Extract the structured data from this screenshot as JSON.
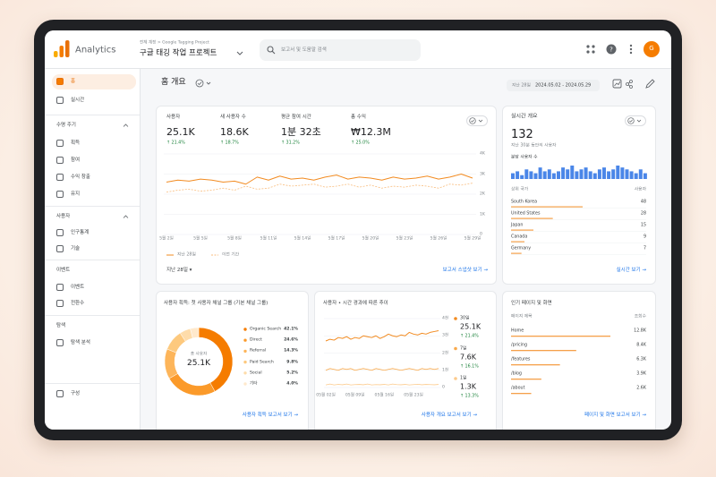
{
  "header": {
    "app_name": "Analytics",
    "breadcrumb": "전체 계정 > Google Tagging Project",
    "property": "구글 태깅 작업 프로젝트",
    "search_placeholder": "보고서 및 도움말 검색",
    "avatar": "G"
  },
  "sidebar": {
    "entries": [
      {
        "label": "홈",
        "kind": "item",
        "active": true
      },
      {
        "label": "실시간",
        "kind": "item"
      },
      {
        "label": "수명 주기",
        "kind": "section",
        "collapsible": true
      },
      {
        "label": "획득",
        "kind": "item"
      },
      {
        "label": "참여",
        "kind": "item"
      },
      {
        "label": "수익 창출",
        "kind": "item"
      },
      {
        "label": "유지",
        "kind": "item"
      },
      {
        "label": "사용자",
        "kind": "section",
        "collapsible": true
      },
      {
        "label": "인구통계",
        "kind": "item"
      },
      {
        "label": "기술",
        "kind": "item"
      },
      {
        "label": "이벤트",
        "kind": "section"
      },
      {
        "label": "이벤트",
        "kind": "item"
      },
      {
        "label": "전환수",
        "kind": "item"
      },
      {
        "label": "탐색",
        "kind": "section"
      },
      {
        "label": "탐색 분석",
        "kind": "item"
      },
      {
        "label": "구성",
        "kind": "item"
      }
    ]
  },
  "page": {
    "title": "홈 개요",
    "date_label": "지난 28일",
    "date_range": "2024.05.02 - 2024.05.29"
  },
  "overview": {
    "metrics": [
      {
        "label": "사용자",
        "value": "25.1K",
        "change": "↑ 21.4%"
      },
      {
        "label": "새 사용자 수",
        "value": "18.6K",
        "change": "↑ 18.7%"
      },
      {
        "label": "평균 참여 시간",
        "value": "1분 32초",
        "change": "↑ 31.2%"
      },
      {
        "label": "총 수익",
        "value": "₩12.3M",
        "change": "↑ 25.0%"
      }
    ],
    "chart": {
      "type": "line",
      "categories": [
        "5월 2일",
        null,
        null,
        "5월 5일",
        null,
        null,
        "5월 8일",
        null,
        null,
        "5월 11일",
        null,
        null,
        "5월 14일",
        null,
        null,
        "5월 17일",
        null,
        null,
        "5월 20일",
        null,
        null,
        "5월 23일",
        null,
        null,
        "5월 26일",
        null,
        null,
        "5월 29일"
      ],
      "series": [
        {
          "name": "지난 28일",
          "color": "#f28b21",
          "dashed": false,
          "values": [
            2600,
            2700,
            2650,
            2750,
            2700,
            2600,
            2650,
            2500,
            2850,
            2700,
            2900,
            2750,
            2800,
            2700,
            2850,
            2950,
            2750,
            2850,
            2800,
            2700,
            2850,
            2750,
            2800,
            2900,
            2750,
            2850,
            3000,
            2800
          ]
        },
        {
          "name": "이전 기간",
          "color": "#f9bd7e",
          "dashed": true,
          "values": [
            2100,
            2200,
            2250,
            2150,
            2200,
            2300,
            2200,
            2400,
            2250,
            2300,
            2500,
            2400,
            2450,
            2500,
            2350,
            2400,
            2500,
            2350,
            2450,
            2300,
            2400,
            2350,
            2450,
            2400,
            2300,
            2500,
            2450,
            2550
          ]
        }
      ],
      "ylim": [
        0,
        4000
      ],
      "yticks": [
        0,
        {
          "value": 1000,
          "label": "1K"
        },
        {
          "value": 2000,
          "label": "2K"
        },
        {
          "value": 3000,
          "label": "3K"
        },
        {
          "value": 4000,
          "label": "4K"
        }
      ],
      "grid": true
    },
    "period_select": "지난 28일 ▾",
    "link": "보고서 스냅샷 보기 →"
  },
  "realtime": {
    "title": "실시간 개요",
    "value": "132",
    "subtitle": "지난 30분 동안의 사용자",
    "chart_label": "분당 사용자 수",
    "chart": {
      "type": "bar",
      "color": "#4a86e8",
      "values": [
        3,
        4,
        2,
        5,
        4,
        3,
        6,
        4,
        5,
        3,
        4,
        6,
        5,
        7,
        4,
        5,
        6,
        4,
        3,
        5,
        6,
        4,
        5,
        7,
        6,
        5,
        4,
        3,
        5,
        3
      ]
    },
    "table_header": [
      "상위 국가",
      "사용자"
    ],
    "countries": [
      {
        "name": "South Korea",
        "value": 48
      },
      {
        "name": "United States",
        "value": 28
      },
      {
        "name": "Japan",
        "value": 15
      },
      {
        "name": "Canada",
        "value": 9
      },
      {
        "name": "Germany",
        "value": 7
      }
    ],
    "link": "실시간 보기 →"
  },
  "acquisition": {
    "title": "사용자 획득: 첫 사용자 채널 그룹 (기본 채널 그룹)",
    "center_label": "총 사용자",
    "center_value": "25.1K",
    "chart": {
      "type": "donut",
      "categories": [
        "Organic Search",
        "Direct",
        "Referral",
        "Paid Search",
        "Social",
        "기타"
      ],
      "values": [
        42.1,
        24.6,
        14.3,
        9.8,
        5.2,
        4.0
      ],
      "value_labels": [
        "42.1%",
        "24.6%",
        "14.3%",
        "9.8%",
        "5.2%",
        "4.0%"
      ],
      "colors": [
        "#f57c00",
        "#fb9a2a",
        "#fdb55a",
        "#fdc97e",
        "#fedcaa",
        "#ffe9cc"
      ]
    },
    "link": "사용자 획득 보고서 보기 →"
  },
  "trend": {
    "title": "사용자 • 시간 경과에 따른 추이",
    "chart": {
      "type": "line",
      "categories": [
        "05월 02일",
        null,
        null,
        null,
        null,
        null,
        null,
        "05월 09일",
        null,
        null,
        null,
        null,
        null,
        null,
        "05월 16일",
        null,
        null,
        null,
        null,
        null,
        null,
        "05월 23일",
        null,
        null,
        null,
        null,
        null,
        null
      ],
      "series": [
        {
          "name": "30일",
          "color": "#f28b21",
          "dashed": false,
          "total": "25.1K",
          "change": "↑ 21.4%",
          "values": [
            2700,
            2800,
            2750,
            2900,
            2850,
            2950,
            2800,
            2900,
            2850,
            3000,
            2950,
            2900,
            3000,
            2850,
            2950,
            3100,
            3000,
            2950,
            3050,
            3000,
            3200,
            3100,
            3050,
            3150,
            3100,
            3200,
            3250,
            3300
          ]
        },
        {
          "name": "7일",
          "color": "#f9a94b",
          "dashed": false,
          "total": "7.6K",
          "change": "↑ 16.1%",
          "values": [
            1000,
            1100,
            1050,
            1000,
            1100,
            1050,
            1100,
            1000,
            1050,
            1100,
            1050,
            1000,
            1100,
            1050,
            1000,
            1050,
            1100,
            1050,
            1000,
            1050,
            1100,
            1050,
            1000,
            1100,
            1050,
            1100,
            1050,
            1100
          ]
        },
        {
          "name": "1일",
          "color": "#fcca8c",
          "dashed": false,
          "total": "1.3K",
          "change": "↑ 13.3%",
          "values": [
            150,
            200,
            150,
            180,
            160,
            200,
            150,
            170,
            180,
            160,
            200,
            150,
            170,
            160,
            180,
            150,
            200,
            170,
            160,
            180,
            150,
            170,
            190,
            160,
            180,
            170,
            160,
            180
          ]
        }
      ],
      "ylim": [
        0,
        4000
      ],
      "yticks": [
        0,
        {
          "value": 1000,
          "label": "1천"
        },
        {
          "value": 2000,
          "label": "2천"
        },
        {
          "value": 3000,
          "label": "3천"
        },
        {
          "value": 4000,
          "label": "4천"
        }
      ],
      "grid": true
    },
    "link": "사용자 개요 보고서 보기 →"
  },
  "top_pages": {
    "title": "인기 페이지 및 화면",
    "table_header": [
      "페이지 제목",
      "조회수"
    ],
    "rows": [
      {
        "page": "Home",
        "value": 12800,
        "value_label": "12.8K"
      },
      {
        "page": "/pricing",
        "value": 8400,
        "value_label": "8.4K"
      },
      {
        "page": "/features",
        "value": 6300,
        "value_label": "6.3K"
      },
      {
        "page": "/blog",
        "value": 3900,
        "value_label": "3.9K"
      },
      {
        "page": "/about",
        "value": 2600,
        "value_label": "2.6K"
      }
    ],
    "color": "#f5a04a",
    "link": "페이지 및 화면 보고서 보기 →"
  }
}
